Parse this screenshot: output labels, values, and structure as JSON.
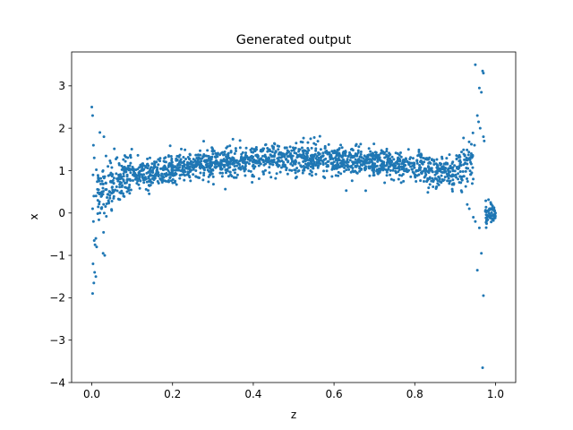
{
  "chart_data": {
    "type": "scatter",
    "title": "Generated output",
    "xlabel": "z",
    "ylabel": "x",
    "xlim": [
      -0.05,
      1.05
    ],
    "ylim": [
      -4.0,
      3.8
    ],
    "xticks": [
      0.0,
      0.2,
      0.4,
      0.6,
      0.8,
      1.0
    ],
    "xtick_labels": [
      "0.0",
      "0.2",
      "0.4",
      "0.6",
      "0.8",
      "1.0"
    ],
    "yticks": [
      -4,
      -3,
      -2,
      -1,
      0,
      1,
      2,
      3
    ],
    "ytick_labels": [
      "−4",
      "−3",
      "−2",
      "−1",
      "0",
      "1",
      "2",
      "3"
    ],
    "grid": false,
    "legend": "none",
    "marker_color": "#1f77b4",
    "series": [
      {
        "points": [
          [
            0.0,
            2.5
          ],
          [
            0.002,
            2.3
          ],
          [
            0.004,
            1.6
          ],
          [
            0.006,
            1.3
          ],
          [
            0.003,
            0.9
          ],
          [
            0.005,
            0.4
          ],
          [
            0.002,
            0.1
          ],
          [
            0.004,
            -0.2
          ],
          [
            0.006,
            -0.65
          ],
          [
            0.008,
            -0.75
          ],
          [
            0.01,
            -0.6
          ],
          [
            0.003,
            -1.2
          ],
          [
            0.007,
            -1.4
          ],
          [
            0.01,
            -1.5
          ],
          [
            0.002,
            -1.9
          ],
          [
            0.005,
            -1.65
          ],
          [
            0.012,
            -0.8
          ],
          [
            0.015,
            0.3
          ],
          [
            0.02,
            1.9
          ],
          [
            0.03,
            1.8
          ],
          [
            0.028,
            -0.95
          ],
          [
            0.032,
            -1.0
          ],
          [
            0.02,
            0.0
          ],
          [
            0.025,
            0.5
          ],
          [
            0.035,
            0.7
          ],
          [
            0.04,
            1.1
          ],
          [
            0.045,
            0.9
          ],
          [
            0.05,
            0.6
          ],
          [
            0.95,
            3.5
          ],
          [
            0.96,
            2.95
          ],
          [
            0.965,
            2.85
          ],
          [
            0.968,
            3.35
          ],
          [
            0.97,
            3.3
          ],
          [
            0.955,
            2.3
          ],
          [
            0.958,
            2.15
          ],
          [
            0.962,
            2.0
          ],
          [
            0.97,
            1.8
          ],
          [
            0.972,
            1.7
          ],
          [
            0.948,
            1.6
          ],
          [
            0.94,
            1.4
          ],
          [
            0.93,
            0.2
          ],
          [
            0.935,
            0.1
          ],
          [
            0.945,
            -0.1
          ],
          [
            0.95,
            -0.2
          ],
          [
            0.96,
            -0.35
          ],
          [
            0.955,
            -1.35
          ],
          [
            0.965,
            -0.95
          ],
          [
            0.97,
            -1.95
          ],
          [
            0.968,
            -3.65
          ],
          [
            0.975,
            0.05
          ],
          [
            0.98,
            -0.1
          ],
          [
            0.985,
            0.1
          ],
          [
            0.99,
            0.2
          ],
          [
            0.995,
            -0.05
          ],
          [
            1.0,
            0.0
          ],
          [
            0.988,
            0.25
          ],
          [
            0.992,
            -0.15
          ],
          [
            0.978,
            -0.25
          ]
        ]
      }
    ]
  }
}
